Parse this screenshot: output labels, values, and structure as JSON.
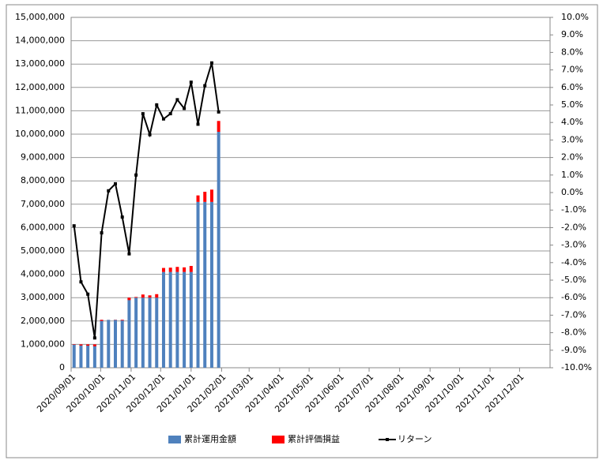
{
  "chart_data": {
    "type": "bar",
    "stacked": true,
    "x": [
      "2020/09/04",
      "2020/09/11",
      "2020/09/18",
      "2020/09/25",
      "2020/10/02",
      "2020/10/09",
      "2020/10/16",
      "2020/10/23",
      "2020/10/30",
      "2020/11/06",
      "2020/11/13",
      "2020/11/20",
      "2020/11/27",
      "2020/12/04",
      "2020/12/11",
      "2020/12/18",
      "2020/12/25",
      "2021/01/01",
      "2021/01/08",
      "2021/01/15",
      "2021/01/22",
      "2021/01/29"
    ],
    "series": [
      {
        "name": "累計運用金額",
        "color": "#4f81bd",
        "values": [
          1000000,
          1000000,
          1000000,
          1000000,
          2050000,
          2050000,
          2050000,
          2050000,
          3000000,
          3000000,
          3000000,
          3000000,
          3000000,
          4100000,
          4100000,
          4100000,
          4100000,
          4100000,
          7100000,
          7100000,
          7100000,
          10100000
        ]
      },
      {
        "name": "累計評価損益",
        "color": "#ff0000",
        "values": [
          -19000,
          -51000,
          -58000,
          -83000,
          -47000,
          2000,
          10000,
          -29000,
          -105000,
          30000,
          135000,
          99000,
          150000,
          172000,
          185000,
          217000,
          197000,
          258000,
          277000,
          433000,
          525000,
          465000
        ]
      },
      {
        "name": "リターン",
        "color": "#000000",
        "type": "line",
        "axis": "y2",
        "values": [
          -1.9,
          -5.1,
          -5.8,
          -8.3,
          -2.3,
          0.1,
          0.5,
          -1.4,
          -3.5,
          1.0,
          4.5,
          3.3,
          5.0,
          4.2,
          4.5,
          5.3,
          4.8,
          6.3,
          3.9,
          6.1,
          7.4,
          4.6
        ]
      }
    ],
    "xlim": [
      "2020/09/01",
      "2022/01/01"
    ],
    "xticks": [
      "2020/09/01",
      "2020/10/01",
      "2020/11/01",
      "2020/12/01",
      "2021/01/01",
      "2021/02/01",
      "2021/03/01",
      "2021/04/01",
      "2021/05/01",
      "2021/06/01",
      "2021/07/01",
      "2021/08/01",
      "2021/09/01",
      "2021/10/01",
      "2021/11/01",
      "2021/12/01"
    ],
    "ylim": [
      0,
      15000000
    ],
    "yticks": [
      0,
      {
        "value": 1000000,
        "label": "1,000,000"
      },
      {
        "value": 2000000,
        "label": "2,000,000"
      },
      {
        "value": 3000000,
        "label": "3,000,000"
      },
      {
        "value": 4000000,
        "label": "4,000,000"
      },
      {
        "value": 5000000,
        "label": "5,000,000"
      },
      {
        "value": 6000000,
        "label": "6,000,000"
      },
      {
        "value": 7000000,
        "label": "7,000,000"
      },
      {
        "value": 8000000,
        "label": "8,000,000"
      },
      {
        "value": 9000000,
        "label": "9,000,000"
      },
      {
        "value": 10000000,
        "label": "10,000,000"
      },
      {
        "value": 11000000,
        "label": "11,000,000"
      },
      {
        "value": 12000000,
        "label": "12,000,000"
      },
      {
        "value": 13000000,
        "label": "13,000,000"
      },
      {
        "value": 14000000,
        "label": "14,000,000"
      },
      {
        "value": 15000000,
        "label": "15,000,000"
      }
    ],
    "y2lim": [
      -10,
      10
    ],
    "y2ticks": [
      {
        "value": -10,
        "label": "-10.0%"
      },
      {
        "value": -9,
        "label": "-9.0%"
      },
      {
        "value": -8,
        "label": "-8.0%"
      },
      {
        "value": -7,
        "label": "-7.0%"
      },
      {
        "value": -6,
        "label": "-6.0%"
      },
      {
        "value": -5,
        "label": "-5.0%"
      },
      {
        "value": -4,
        "label": "-4.0%"
      },
      {
        "value": -3,
        "label": "-3.0%"
      },
      {
        "value": -2,
        "label": "-2.0%"
      },
      {
        "value": -1,
        "label": "-1.0%"
      },
      {
        "value": 0,
        "label": "0.0%"
      },
      {
        "value": 1,
        "label": "1.0%"
      },
      {
        "value": 2,
        "label": "2.0%"
      },
      {
        "value": 3,
        "label": "3.0%"
      },
      {
        "value": 4,
        "label": "4.0%"
      },
      {
        "value": 5,
        "label": "5.0%"
      },
      {
        "value": 6,
        "label": "6.0%"
      },
      {
        "value": 7,
        "label": "7.0%"
      },
      {
        "value": 8,
        "label": "8.0%"
      },
      {
        "value": 9,
        "label": "9.0%"
      },
      {
        "value": 10,
        "label": "10.0%"
      }
    ],
    "grid": true,
    "legend": "bottom"
  }
}
